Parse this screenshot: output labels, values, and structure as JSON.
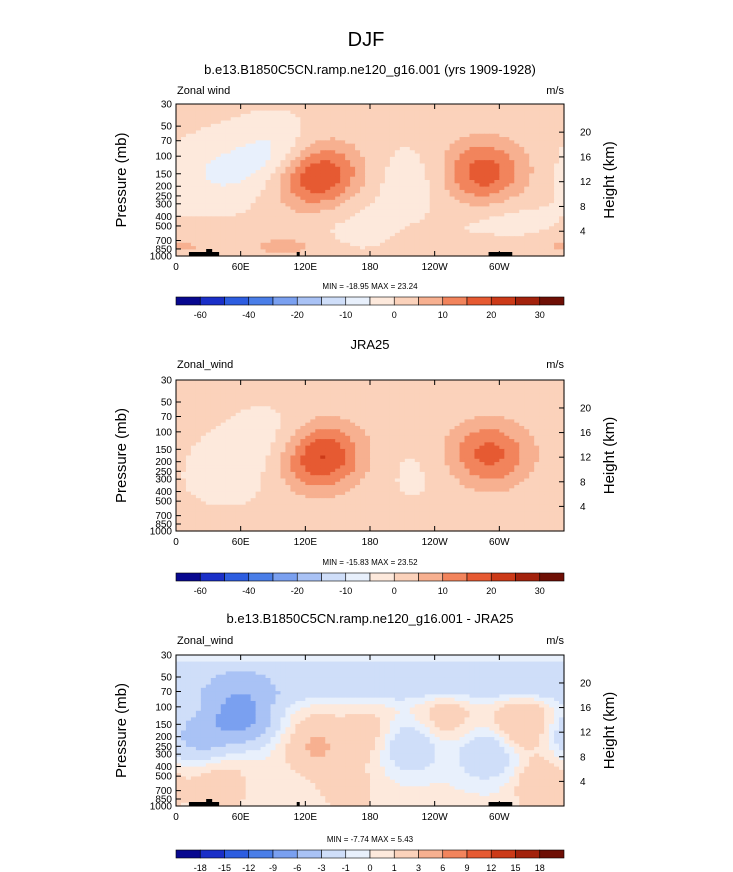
{
  "figure_title": "DJF",
  "colormaps": {
    "wind_main": [
      "#08088f",
      "#1a2fc8",
      "#2d5de0",
      "#4a7ee8",
      "#7aa0f0",
      "#a9c2f5",
      "#cfdef9",
      "#e8f0fc",
      "#fde9dc",
      "#fbd2bb",
      "#f7b090",
      "#f2845c",
      "#e65a32",
      "#cc3a18",
      "#a3220c",
      "#6e0f05"
    ],
    "wind_diff": [
      "#08088f",
      "#1a2fc8",
      "#2d5de0",
      "#4a7ee8",
      "#7aa0f0",
      "#a9c2f5",
      "#cfdef9",
      "#e8f0fc",
      "#fde9dc",
      "#fbd2bb",
      "#f7b090",
      "#f2845c",
      "#e65a32",
      "#cc3a18",
      "#a3220c",
      "#6e0f05"
    ]
  },
  "chart_data": [
    {
      "type": "heatmap",
      "title": "b.e13.B1850C5CN.ramp.ne120_g16.001 (yrs 1909-1928)",
      "left_label": "Zonal wind",
      "right_label": "m/s",
      "ylabel": "Pressure (mb)",
      "y2label": "Height (km)",
      "xticks": [
        "0",
        "60E",
        "120E",
        "180",
        "120W",
        "60W"
      ],
      "yticks": [
        "30",
        "50",
        "70",
        "100",
        "150",
        "200",
        "250",
        "300",
        "400",
        "500",
        "700",
        "850",
        "1000"
      ],
      "y2ticks": [
        "4",
        "8",
        "12",
        "16",
        "20"
      ],
      "stats": "MIN = -18.95  MAX =  23.24",
      "min": -18.95,
      "max": 23.24,
      "colorbar_labels": [
        "-60",
        "-40",
        "-20",
        "-10",
        "0",
        "10",
        "20",
        "30"
      ],
      "jets": [
        {
          "lon": 130,
          "p": 150,
          "peak": 23.2
        },
        {
          "lon": 285,
          "p": 150,
          "peak": 18
        }
      ],
      "lows": [
        {
          "lon": 100,
          "p": 100,
          "peak": -11
        },
        {
          "lon": 40,
          "p": 150,
          "peak": -6
        },
        {
          "lon": 225,
          "p": 170,
          "peak": -4
        },
        {
          "lon": 160,
          "p": 400,
          "peak": -3
        },
        {
          "lon": 300,
          "p": 400,
          "peak": -4
        }
      ],
      "lowlevel": [
        {
          "lon": 100,
          "p": 800,
          "peak": 6
        },
        {
          "lon": 3,
          "p": 800,
          "peak": 5
        },
        {
          "lon": 290,
          "p": 800,
          "peak": 4
        }
      ],
      "topography": true
    },
    {
      "type": "heatmap",
      "title": "JRA25",
      "left_label": "Zonal_wind",
      "right_label": "m/s",
      "ylabel": "Pressure (mb)",
      "y2label": "Height (km)",
      "xticks": [
        "0",
        "60E",
        "120E",
        "180",
        "120W",
        "60W"
      ],
      "yticks": [
        "30",
        "50",
        "70",
        "100",
        "150",
        "200",
        "250",
        "300",
        "400",
        "500",
        "700",
        "850",
        "1000"
      ],
      "y2ticks": [
        "4",
        "8",
        "12",
        "16",
        "20"
      ],
      "stats": "MIN = -15.83  MAX =  23.52",
      "min": -15.83,
      "max": 23.52,
      "colorbar_labels": [
        "-60",
        "-40",
        "-20",
        "-10",
        "0",
        "10",
        "20",
        "30"
      ],
      "jets": [
        {
          "lon": 132,
          "p": 170,
          "peak": 23.5
        },
        {
          "lon": 290,
          "p": 170,
          "peak": 16
        }
      ],
      "lows": [
        {
          "lon": 105,
          "p": 130,
          "peak": -8
        },
        {
          "lon": 50,
          "p": 250,
          "peak": -3
        },
        {
          "lon": 230,
          "p": 250,
          "peak": -2
        }
      ],
      "lowlevel": [
        {
          "lon": 100,
          "p": 850,
          "peak": 3
        },
        {
          "lon": 230,
          "p": 850,
          "peak": 2
        }
      ],
      "topography": false
    },
    {
      "type": "heatmap",
      "title": "b.e13.B1850C5CN.ramp.ne120_g16.001 - JRA25",
      "left_label": "Zonal_wind",
      "right_label": "m/s",
      "ylabel": "Pressure (mb)",
      "y2label": "Height (km)",
      "xticks": [
        "0",
        "60E",
        "120E",
        "180",
        "120W",
        "60W"
      ],
      "yticks": [
        "30",
        "50",
        "70",
        "100",
        "150",
        "200",
        "250",
        "300",
        "400",
        "500",
        "700",
        "850",
        "1000"
      ],
      "y2ticks": [
        "4",
        "8",
        "12",
        "16",
        "20"
      ],
      "stats": "MIN = -7.74  MAX =   5.43",
      "min": -7.74,
      "max": 5.43,
      "colorbar_labels": [
        "-18",
        "-15",
        "-12",
        "-9",
        "-6",
        "-3",
        "-1",
        "0",
        "1",
        "3",
        "6",
        "9",
        "12",
        "15",
        "18"
      ],
      "bands": [
        {
          "p": 45,
          "peak": -2.5
        },
        {
          "p": 70,
          "peak": -2
        }
      ],
      "lows": [
        {
          "lon": 60,
          "p": 120,
          "peak": -7.7
        },
        {
          "lon": 20,
          "p": 200,
          "peak": -4
        },
        {
          "lon": 215,
          "p": 250,
          "peak": -3
        },
        {
          "lon": 290,
          "p": 300,
          "peak": -3
        }
      ],
      "highs": [
        {
          "lon": 130,
          "p": 250,
          "peak": 3
        },
        {
          "lon": 320,
          "p": 150,
          "peak": 3
        },
        {
          "lon": 250,
          "p": 130,
          "peak": 2
        },
        {
          "lon": 180,
          "p": 200,
          "peak": 2
        },
        {
          "lon": 40,
          "p": 600,
          "peak": 2
        },
        {
          "lon": 340,
          "p": 600,
          "peak": 2.5
        },
        {
          "lon": 160,
          "p": 700,
          "peak": 1.5
        }
      ],
      "topography": true
    }
  ]
}
